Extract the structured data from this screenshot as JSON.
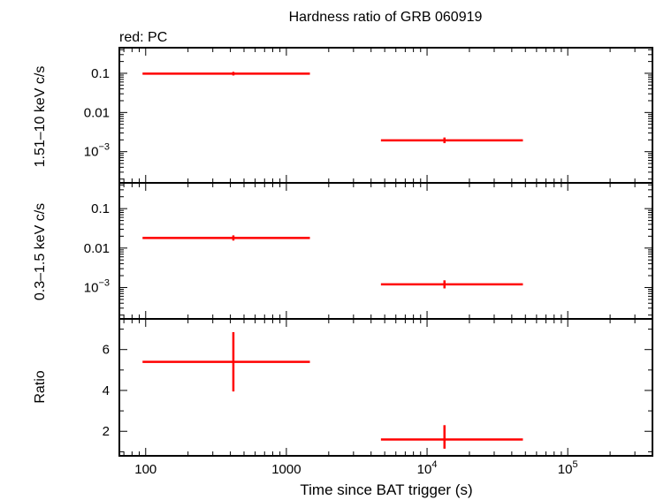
{
  "chart_data": [
    {
      "type": "scatter",
      "panel": "hard",
      "title": "Hardness ratio of GRB 060919",
      "subtitle": "red: PC",
      "ylabel": "1.51–10 keV c/s",
      "yscale": "log",
      "ylim": [
        0.00016,
        0.45
      ],
      "yticks": [
        {
          "value": 0.1,
          "label": "0.1"
        },
        {
          "value": 0.01,
          "label": "0.01"
        },
        {
          "value": 0.001,
          "label": "10",
          "sup": "−3"
        }
      ],
      "series": [
        {
          "name": "PC",
          "color": "#ff0000",
          "points": [
            {
              "x": 420,
              "xlo": 95,
              "xhi": 1470,
              "y": 0.098,
              "ylo": 0.088,
              "yhi": 0.109
            },
            {
              "x": 13300,
              "xlo": 4700,
              "xhi": 48000,
              "y": 0.00195,
              "ylo": 0.00165,
              "yhi": 0.0023
            }
          ]
        }
      ]
    },
    {
      "type": "scatter",
      "panel": "soft",
      "ylabel": "0.3–1.5 keV c/s",
      "yscale": "log",
      "ylim": [
        0.00016,
        0.45
      ],
      "yticks": [
        {
          "value": 0.1,
          "label": "0.1"
        },
        {
          "value": 0.01,
          "label": "0.01"
        },
        {
          "value": 0.001,
          "label": "10",
          "sup": "−3"
        }
      ],
      "series": [
        {
          "name": "PC",
          "color": "#ff0000",
          "points": [
            {
              "x": 420,
              "xlo": 95,
              "xhi": 1470,
              "y": 0.018,
              "ylo": 0.0155,
              "yhi": 0.021
            },
            {
              "x": 13300,
              "xlo": 4700,
              "xhi": 48000,
              "y": 0.0012,
              "ylo": 0.00095,
              "yhi": 0.00152
            }
          ]
        }
      ]
    },
    {
      "type": "scatter",
      "panel": "ratio",
      "ylabel": "Ratio",
      "yscale": "linear",
      "ylim": [
        0.8,
        7.5
      ],
      "yticks": [
        {
          "value": 2,
          "label": "2"
        },
        {
          "value": 4,
          "label": "4"
        },
        {
          "value": 6,
          "label": "6"
        }
      ],
      "xlabel": "Time since BAT trigger (s)",
      "xscale": "log",
      "xlim": [
        65,
        400000
      ],
      "xticks": [
        {
          "value": 100,
          "label": "100"
        },
        {
          "value": 1000,
          "label": "1000"
        },
        {
          "value": 10000,
          "label": "10",
          "sup": "4"
        },
        {
          "value": 100000,
          "label": "10",
          "sup": "5"
        }
      ],
      "series": [
        {
          "name": "PC",
          "color": "#ff0000",
          "points": [
            {
              "x": 420,
              "xlo": 95,
              "xhi": 1470,
              "y": 5.4,
              "ylo": 3.95,
              "yhi": 6.85
            },
            {
              "x": 13300,
              "xlo": 4700,
              "xhi": 48000,
              "y": 1.6,
              "ylo": 1.15,
              "yhi": 2.3
            }
          ]
        }
      ]
    }
  ]
}
